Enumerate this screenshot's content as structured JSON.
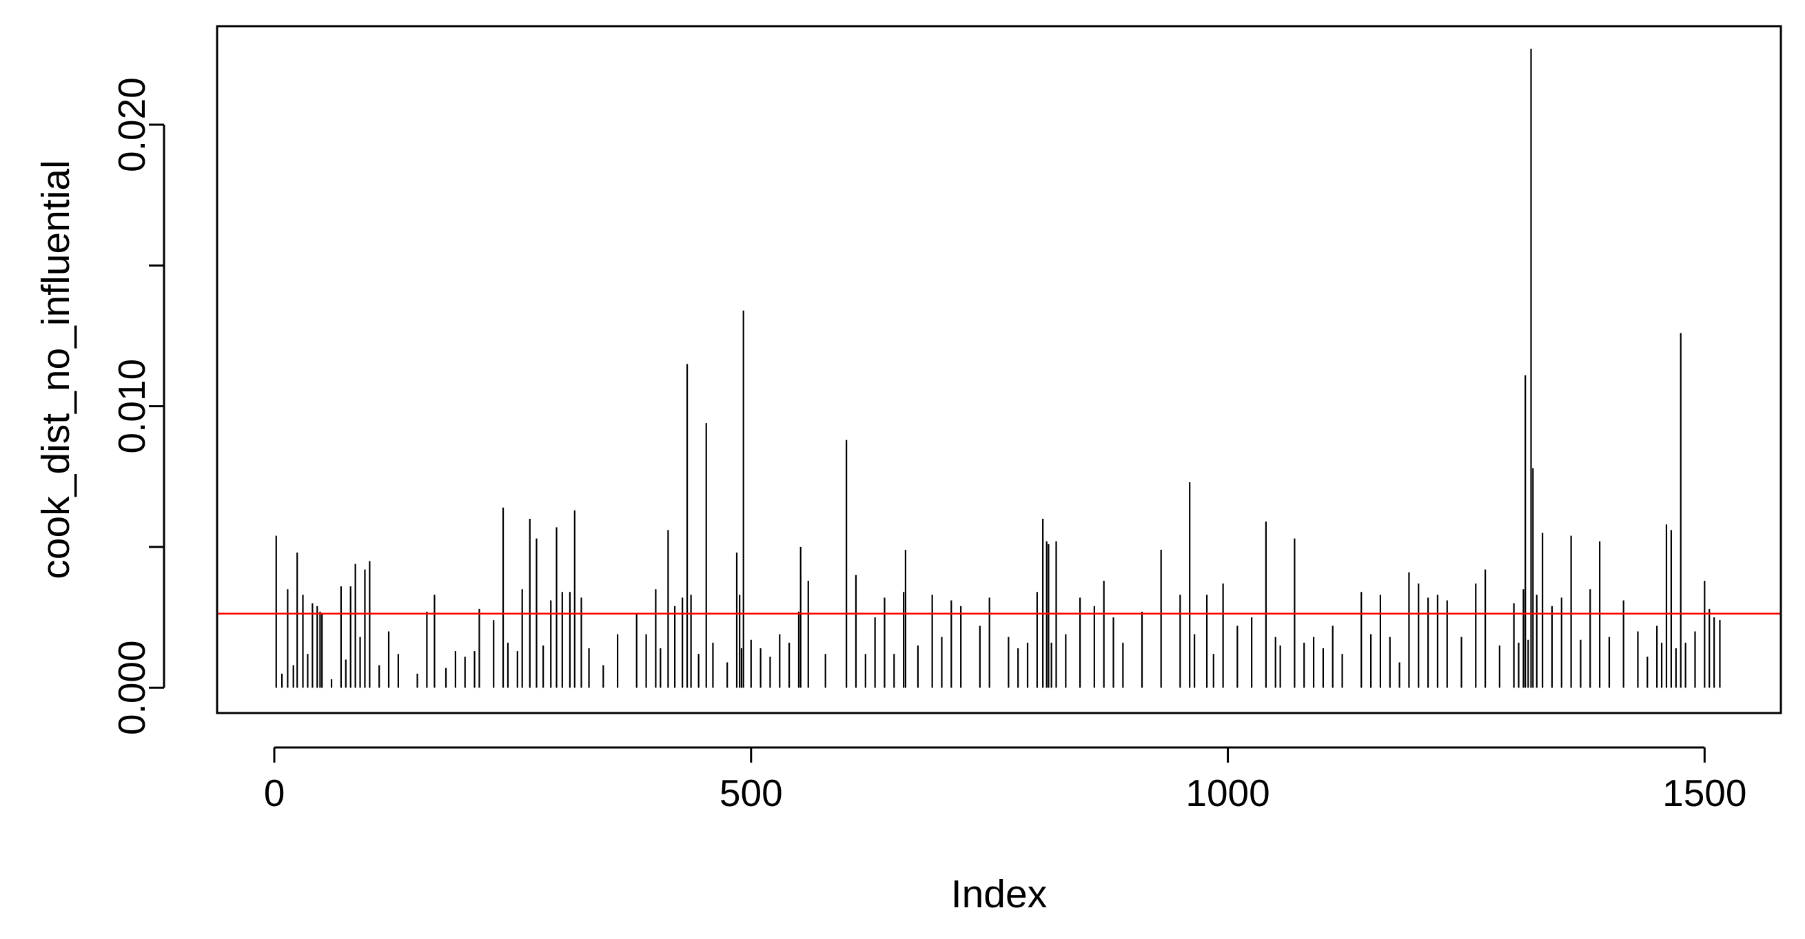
{
  "chart_data": {
    "type": "line",
    "plot_style": "histogram-like vertical lines (type = h)",
    "title": "",
    "xlabel": "Index",
    "ylabel": "cook_dist_no_influential",
    "xlim": [
      -60,
      1580
    ],
    "ylim": [
      -0.0009,
      0.0235
    ],
    "x_ticks": [
      0,
      500,
      1000,
      1500
    ],
    "x_tick_labels": [
      "0",
      "500",
      "1000",
      "1500"
    ],
    "y_ticks": [
      0.0,
      0.005,
      0.01,
      0.015,
      0.02
    ],
    "y_tick_labels": [
      "0.000",
      "",
      "0.010",
      "",
      "0.020"
    ],
    "grid": false,
    "line_color": "#000000",
    "reference_line": {
      "orientation": "horizontal",
      "y": 0.00263,
      "color": "#ff0000"
    },
    "n_points": 1518,
    "series": [
      {
        "x": [
          2,
          8,
          14,
          20,
          24,
          30,
          35,
          40,
          45,
          48,
          50,
          60,
          70,
          75,
          80,
          85,
          90,
          95,
          100,
          110,
          120,
          130,
          150,
          160,
          168,
          180,
          190,
          200,
          210,
          215,
          230,
          240,
          245,
          255,
          260,
          268,
          275,
          282,
          290,
          296,
          302,
          310,
          315,
          322,
          330,
          345,
          360,
          380,
          390,
          400,
          405,
          413,
          420,
          428,
          433,
          437,
          445,
          453,
          460,
          475,
          485,
          488,
          490,
          492,
          500,
          510,
          520,
          530,
          540,
          550,
          552,
          560,
          578,
          600,
          610,
          620,
          630,
          640,
          650,
          660,
          662,
          675,
          690,
          700,
          710,
          720,
          740,
          750,
          770,
          780,
          790,
          800,
          806,
          810,
          812,
          815,
          820,
          830,
          845,
          860,
          870,
          880,
          890,
          910,
          930,
          950,
          960,
          965,
          978,
          985,
          995,
          1010,
          1025,
          1040,
          1050,
          1055,
          1070,
          1080,
          1090,
          1100,
          1110,
          1120,
          1140,
          1150,
          1160,
          1170,
          1180,
          1190,
          1200,
          1210,
          1220,
          1230,
          1245,
          1260,
          1270,
          1285,
          1300,
          1305,
          1310,
          1312,
          1315,
          1318,
          1320,
          1324,
          1330,
          1340,
          1350,
          1360,
          1370,
          1380,
          1390,
          1400,
          1415,
          1430,
          1440,
          1450,
          1455,
          1460,
          1465,
          1470,
          1475,
          1480,
          1490,
          1500,
          1505,
          1510,
          1516
        ],
        "y": [
          0.0054,
          0.0005,
          0.0035,
          0.0008,
          0.0048,
          0.0033,
          0.0012,
          0.003,
          0.0029,
          0.0027,
          0.0026,
          0.0003,
          0.0036,
          0.001,
          0.0036,
          0.0044,
          0.0018,
          0.0042,
          0.0045,
          0.0008,
          0.002,
          0.0012,
          0.0005,
          0.0027,
          0.0033,
          0.0007,
          0.0013,
          0.0011,
          0.0013,
          0.0028,
          0.0024,
          0.0064,
          0.0016,
          0.0013,
          0.0035,
          0.006,
          0.0053,
          0.0015,
          0.0031,
          0.0057,
          0.0034,
          0.0034,
          0.0063,
          0.0032,
          0.0014,
          0.0008,
          0.0019,
          0.0026,
          0.0019,
          0.0035,
          0.0014,
          0.0056,
          0.0029,
          0.0032,
          0.0115,
          0.0033,
          0.0012,
          0.0094,
          0.0016,
          0.0009,
          0.0048,
          0.0033,
          0.0014,
          0.0134,
          0.0017,
          0.0014,
          0.0011,
          0.0019,
          0.0016,
          0.0027,
          0.005,
          0.0038,
          0.0012,
          0.0088,
          0.004,
          0.0012,
          0.0025,
          0.0032,
          0.0012,
          0.0034,
          0.0049,
          0.0015,
          0.0033,
          0.0018,
          0.0031,
          0.0029,
          0.0022,
          0.0032,
          0.0018,
          0.0014,
          0.0016,
          0.0034,
          0.006,
          0.0052,
          0.0051,
          0.0016,
          0.0052,
          0.0019,
          0.0032,
          0.0029,
          0.0038,
          0.0025,
          0.0016,
          0.0027,
          0.0049,
          0.0033,
          0.0073,
          0.0019,
          0.0033,
          0.0012,
          0.0037,
          0.0022,
          0.0025,
          0.0059,
          0.0018,
          0.0015,
          0.0053,
          0.0016,
          0.0018,
          0.0014,
          0.0022,
          0.0012,
          0.0034,
          0.0019,
          0.0033,
          0.0018,
          0.0009,
          0.0041,
          0.0037,
          0.0032,
          0.0033,
          0.0031,
          0.0018,
          0.0037,
          0.0042,
          0.0015,
          0.003,
          0.0016,
          0.0035,
          0.0111,
          0.0017,
          0.0227,
          0.0078,
          0.0033,
          0.0055,
          0.0029,
          0.0032,
          0.0054,
          0.0017,
          0.0035,
          0.0052,
          0.0018,
          0.0031,
          0.002,
          0.0011,
          0.0022,
          0.0016,
          0.0058,
          0.0056,
          0.0014,
          0.0126,
          0.0016,
          0.002,
          0.0038,
          0.0028,
          0.0025,
          0.0024
        ]
      }
    ]
  }
}
